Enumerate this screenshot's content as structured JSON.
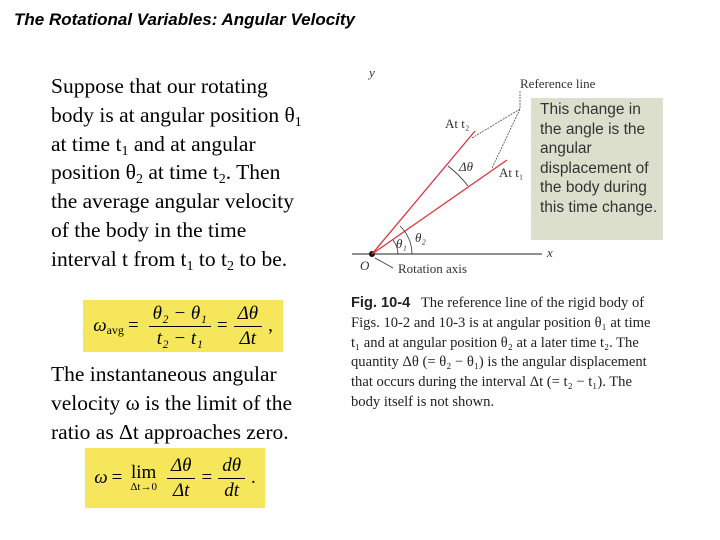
{
  "title": "The Rotational Variables: Angular Velocity",
  "paragraph1": [
    [
      {
        "t": "Suppose that our rotating"
      }
    ],
    [
      {
        "t": "body is at angular position θ"
      },
      {
        "sub": "1"
      }
    ],
    [
      {
        "t": "at time t"
      },
      {
        "sub": "1"
      },
      {
        "t": " and at angular"
      }
    ],
    [
      {
        "t": "position θ"
      },
      {
        "sub": "2"
      },
      {
        "t": " at time t"
      },
      {
        "sub": "2"
      },
      {
        "t": ". Then"
      }
    ],
    [
      {
        "t": "the average angular velocity"
      }
    ],
    [
      {
        "t": "of the body in the time"
      }
    ],
    [
      {
        "t": "interval t from t"
      },
      {
        "sub": "1"
      },
      {
        "t": " to t"
      },
      {
        "sub": "2"
      },
      {
        "t": " to be."
      }
    ]
  ],
  "paragraph2": [
    [
      {
        "t": "The instantaneous angular"
      }
    ],
    [
      {
        "t": "velocity ω is the limit of the"
      }
    ],
    [
      {
        "t": "ratio as Δt approaches zero."
      }
    ]
  ],
  "equation_avg": {
    "lhs": "ω",
    "lhs_sub": "avg",
    "eq": "=",
    "num1": "θ₂ − θ₁",
    "den1": "t₂ − t₁",
    "num2": "Δθ",
    "den2": "Δt",
    "trail": ","
  },
  "equation_inst": {
    "lhs": "ω",
    "eq": "=",
    "lim": "lim",
    "lim_under": "Δt→0",
    "num1": "Δθ",
    "den1": "Δt",
    "num2": "dθ",
    "den2": "dt",
    "trail": "."
  },
  "figure": {
    "y_label": "y",
    "x_label": "x",
    "origin_label": "O",
    "reference_line_label": "Reference line",
    "t2_label": "At t₂",
    "t1_label": "At t₁",
    "delta_theta_label": "Δθ",
    "theta1_label": "θ₁",
    "theta2_label": "θ₂",
    "rotation_axis_label": "Rotation axis",
    "line_color": "#e0303a"
  },
  "note": "This change in the angle is the angular displacement of the body during this time change.",
  "caption": {
    "label": "Fig. 10-4",
    "text": "The reference line of the rigid body of Figs. 10-2 and 10-3 is at angular position θ₁ at time t₁ and at angular position θ₂ at a later time t₂. The quantity Δθ (= θ₂ − θ₁) is the angular displacement that occurs during the interval Δt (= t₂ − t₁). The body itself is not shown."
  }
}
